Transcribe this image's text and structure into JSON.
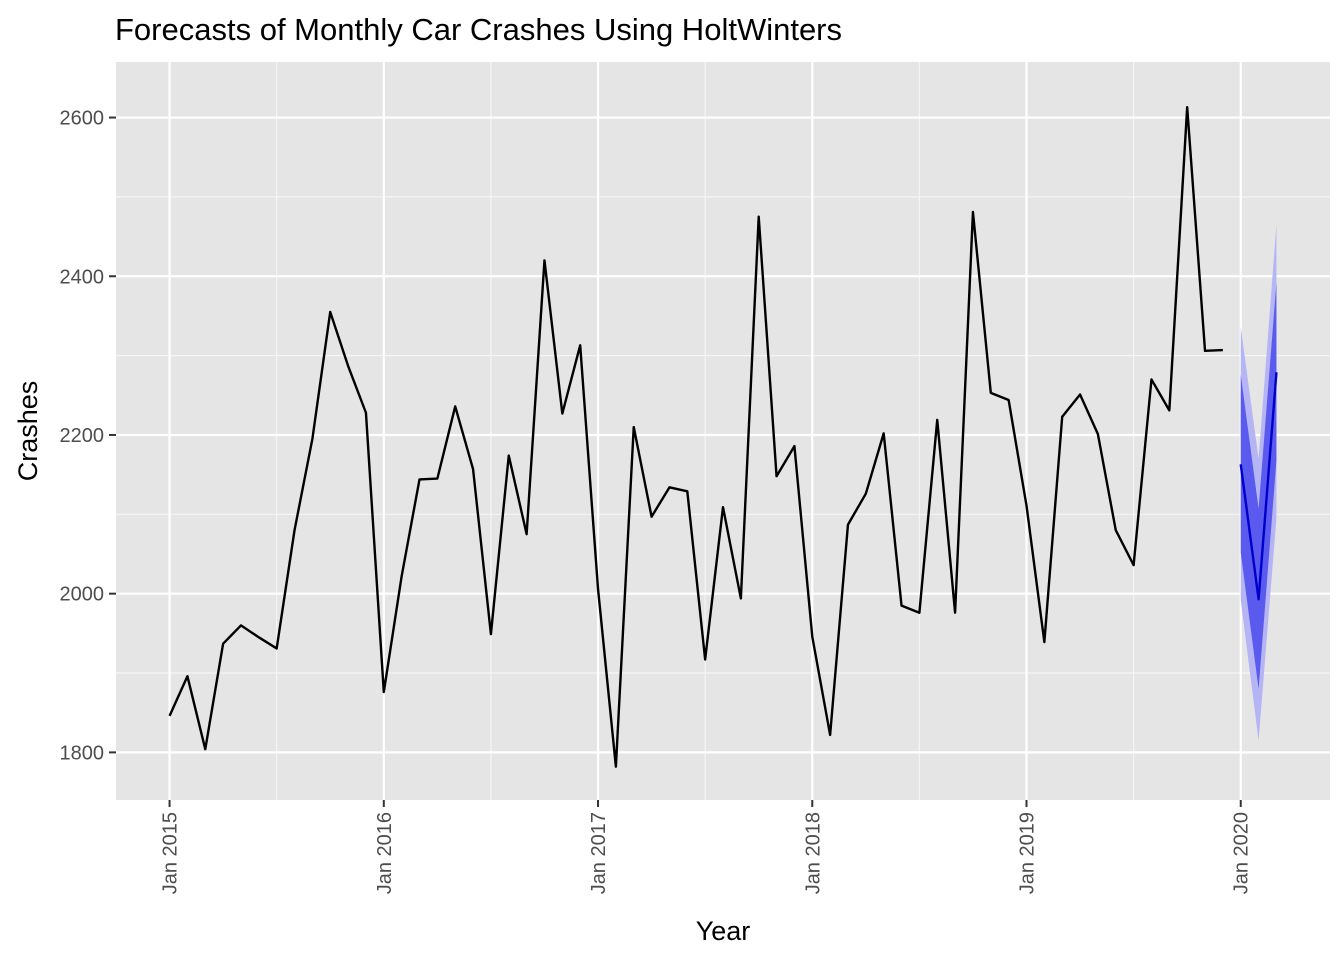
{
  "chart_data": {
    "type": "line",
    "title": "Forecasts of Monthly Car Crashes Using HoltWinters",
    "xlabel": "Year",
    "ylabel": "Crashes",
    "x_tick_labels": [
      "Jan 2015",
      "Jan 2016",
      "Jan 2017",
      "Jan 2018",
      "Jan 2019",
      "Jan 2020"
    ],
    "y_ticks": [
      1800,
      2000,
      2200,
      2400,
      2600
    ],
    "ylim": [
      1740,
      2670
    ],
    "xlim": [
      "2014-10",
      "2020-06"
    ],
    "grid": true,
    "background": "#e5e5e5",
    "series": [
      {
        "kind": "actual",
        "color": "#000000",
        "x": [
          "2015-01",
          "2015-02",
          "2015-03",
          "2015-04",
          "2015-05",
          "2015-06",
          "2015-07",
          "2015-08",
          "2015-09",
          "2015-10",
          "2015-11",
          "2015-12",
          "2016-01",
          "2016-02",
          "2016-03",
          "2016-04",
          "2016-05",
          "2016-06",
          "2016-07",
          "2016-08",
          "2016-09",
          "2016-10",
          "2016-11",
          "2016-12",
          "2017-01",
          "2017-02",
          "2017-03",
          "2017-04",
          "2017-05",
          "2017-06",
          "2017-07",
          "2017-08",
          "2017-09",
          "2017-10",
          "2017-11",
          "2017-12",
          "2018-01",
          "2018-02",
          "2018-03",
          "2018-04",
          "2018-05",
          "2018-06",
          "2018-07",
          "2018-08",
          "2018-09",
          "2018-10",
          "2018-11",
          "2018-12",
          "2019-01",
          "2019-02",
          "2019-03",
          "2019-04",
          "2019-05",
          "2019-06",
          "2019-07",
          "2019-08",
          "2019-09",
          "2019-10",
          "2019-11",
          "2019-12"
        ],
        "values": [
          1846,
          1896,
          1804,
          1937,
          1960,
          1945,
          1931,
          2080,
          2195,
          2355,
          2287,
          2228,
          1876,
          2022,
          2144,
          2145,
          2236,
          2157,
          1949,
          2174,
          2075,
          2420,
          2227,
          2313,
          2006,
          1782,
          2210,
          2097,
          2134,
          2129,
          1917,
          2109,
          1994,
          2475,
          2148,
          2186,
          1946,
          1822,
          2087,
          2126,
          2202,
          1985,
          1976,
          2219,
          1976,
          2481,
          2253,
          2244,
          2111,
          1939,
          2223,
          2251,
          2201,
          2080,
          2036,
          2270,
          2231,
          2613,
          2306,
          2307
        ]
      },
      {
        "kind": "forecast",
        "color": "#0000cc",
        "x": [
          "2020-01",
          "2020-02",
          "2020-03"
        ],
        "values": [
          2163,
          1993,
          2279
        ],
        "ci80": {
          "color": "#5a5aee",
          "lower": [
            2052,
            1880,
            2168
          ],
          "upper": [
            2276,
            2107,
            2392
          ]
        },
        "ci95": {
          "color": "#b5b5f5",
          "lower": [
            1992,
            1815,
            2095
          ],
          "upper": [
            2336,
            2170,
            2465
          ]
        }
      }
    ]
  }
}
